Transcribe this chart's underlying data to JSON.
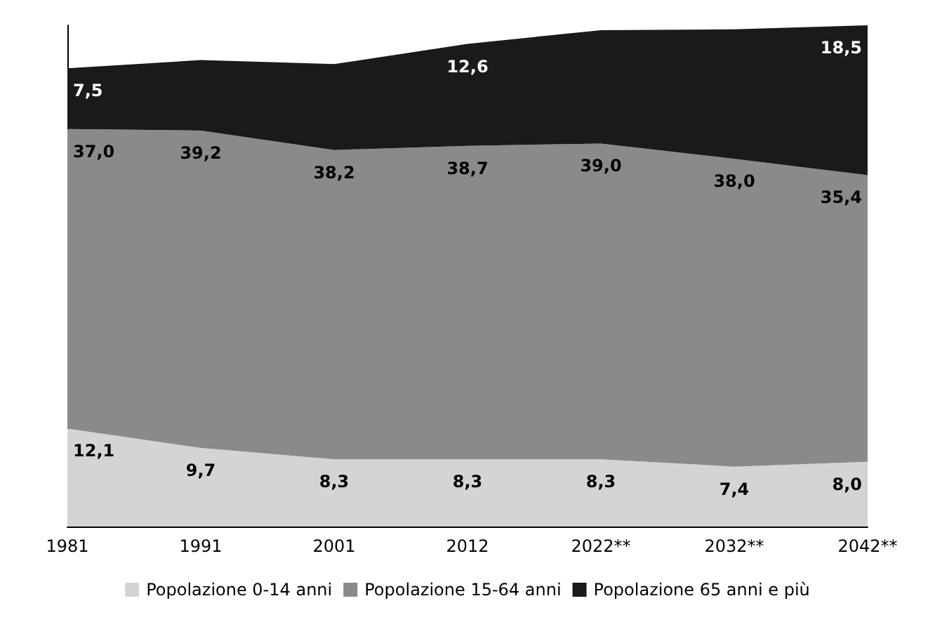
{
  "chart_data": {
    "type": "area",
    "stacked": true,
    "categories": [
      "1981",
      "1991",
      "2001",
      "2012",
      "2022**",
      "2032**",
      "2042**"
    ],
    "series": [
      {
        "name": "Popolazione 0-14 anni",
        "color": "#d4d4d4",
        "values": [
          12.1,
          9.7,
          8.3,
          8.3,
          8.3,
          7.4,
          8.0
        ],
        "value_labels": [
          "12,1",
          "9,7",
          "8,3",
          "8,3",
          "8,3",
          "7,4",
          "8,0"
        ]
      },
      {
        "name": "Popolazione 15-64 anni",
        "color": "#8a8a8a",
        "values": [
          37.0,
          39.2,
          38.2,
          38.7,
          39.0,
          38.0,
          35.4
        ],
        "value_labels": [
          "37,0",
          "39,2",
          "38,2",
          "38,7",
          "39,0",
          "38,0",
          "35,4"
        ]
      },
      {
        "name": "Popolazione 65 anni e più",
        "color": "#1a1a1a",
        "values": [
          7.5,
          8.7,
          10.6,
          12.6,
          14.0,
          16.0,
          18.5
        ],
        "value_labels": [
          "7,5",
          null,
          null,
          "12,6",
          null,
          null,
          "18,5"
        ]
      }
    ],
    "legend": "bottom",
    "tick_labels": "x",
    "grid": false
  }
}
